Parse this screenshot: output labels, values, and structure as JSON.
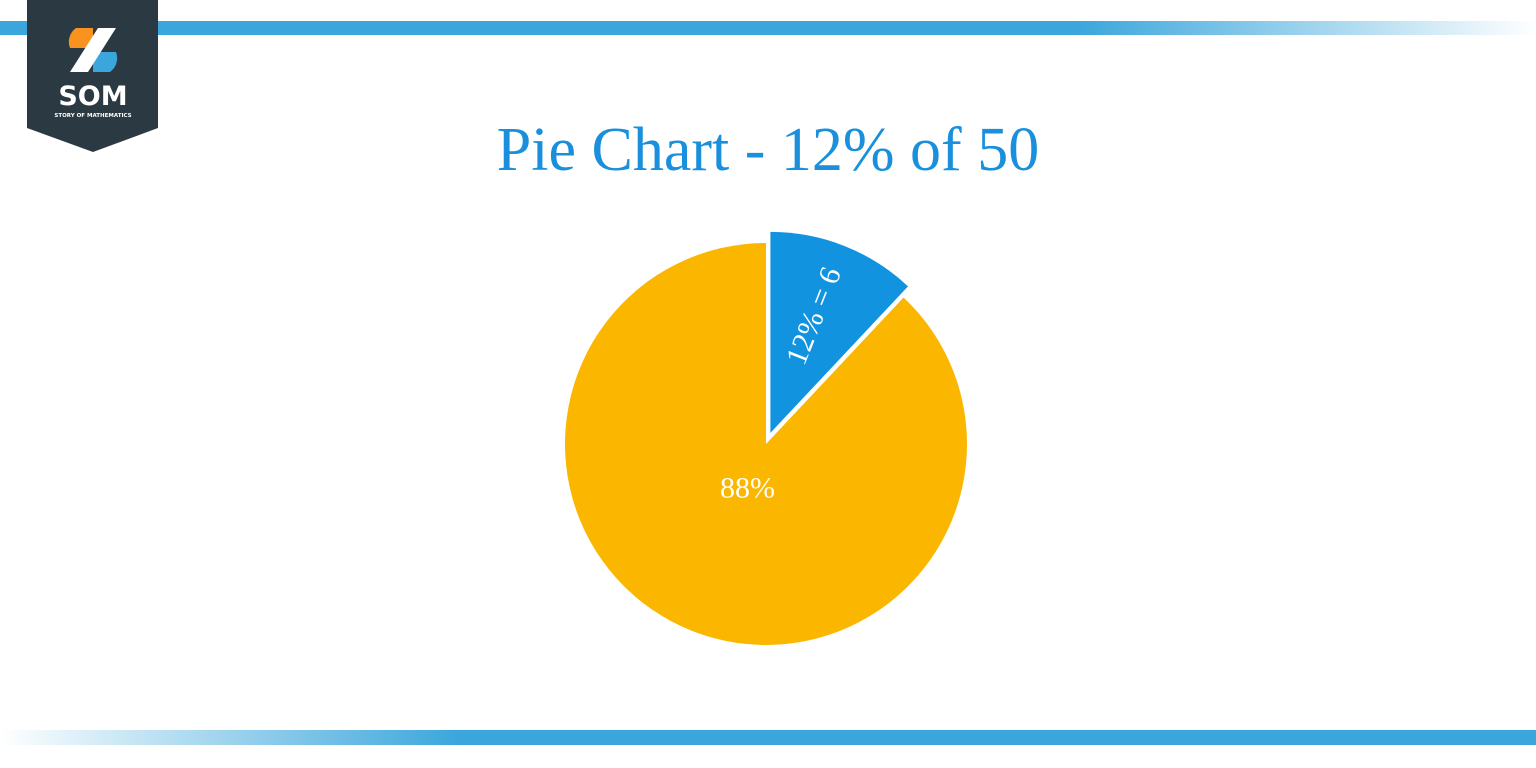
{
  "logo": {
    "text": "SOM",
    "subtitle": "STORY OF MATHEMATICS"
  },
  "chart_data": {
    "type": "pie",
    "title": "Pie Chart - 12% of 50",
    "categories": [
      null,
      null
    ],
    "values": [
      12,
      88
    ],
    "value_labels": [
      "12% = 6",
      "88%"
    ],
    "colors": [
      "#1193e0",
      "#fbb700"
    ]
  }
}
